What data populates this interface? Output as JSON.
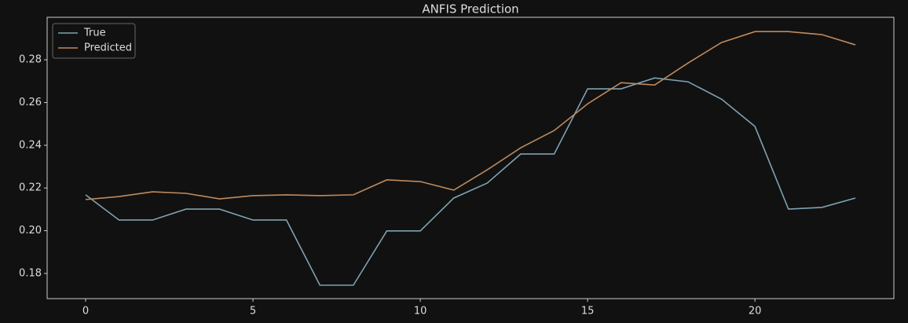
{
  "chart_data": {
    "type": "line",
    "title": "ANFIS Prediction",
    "x": [
      0,
      1,
      2,
      3,
      4,
      5,
      6,
      7,
      8,
      9,
      10,
      11,
      12,
      13,
      14,
      15,
      16,
      17,
      18,
      19,
      20,
      21,
      22,
      23
    ],
    "series": [
      {
        "name": "True",
        "color": "#7fa1b3",
        "values": [
          0.2168,
          0.205,
          0.205,
          0.2101,
          0.2101,
          0.205,
          0.205,
          0.1745,
          0.1745,
          0.1999,
          0.1999,
          0.2153,
          0.2223,
          0.2359,
          0.2359,
          0.2664,
          0.2664,
          0.2715,
          0.2697,
          0.2616,
          0.2488,
          0.2101,
          0.2109,
          0.2153
        ]
      },
      {
        "name": "Predicted",
        "color": "#c08a5c",
        "values": [
          0.2146,
          0.216,
          0.2182,
          0.2175,
          0.2149,
          0.2164,
          0.2168,
          0.2164,
          0.2168,
          0.2238,
          0.223,
          0.219,
          0.2285,
          0.2388,
          0.2469,
          0.2594,
          0.2693,
          0.2682,
          0.2785,
          0.2881,
          0.2932,
          0.2932,
          0.2918,
          0.287
        ]
      }
    ],
    "xlim": [
      -1.15,
      24.15
    ],
    "xticks": [
      0,
      5,
      10,
      15,
      20
    ],
    "ylim": [
      0.1682,
      0.2999
    ],
    "yticks": [
      0.18,
      {
        "value": 0.2,
        "label": "0.20"
      },
      0.22,
      0.24,
      0.26,
      0.28
    ],
    "legend": "upper left",
    "grid": false
  }
}
